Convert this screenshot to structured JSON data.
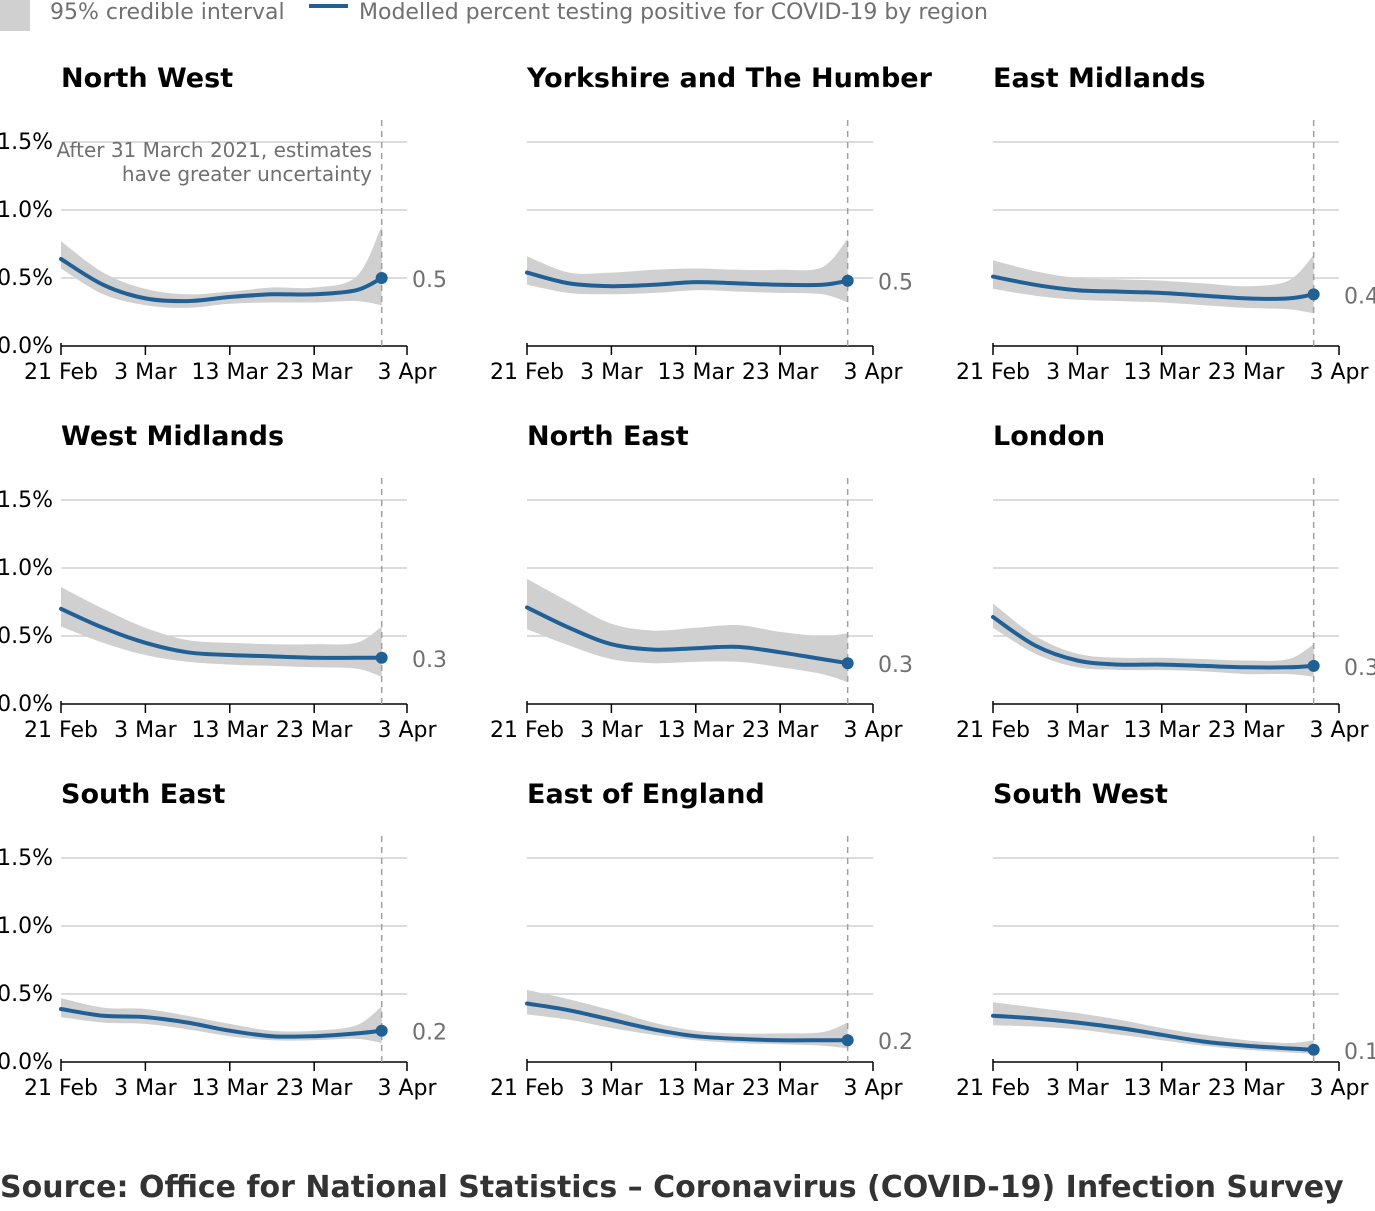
{
  "legend": {
    "band_label": "95% credible interval",
    "line_label": "Modelled percent testing positive for COVID-19 by region"
  },
  "annotation": {
    "line1": "After 31 March 2021, estimates",
    "line2": "have greater uncertainty"
  },
  "source": "Source: Office for National Statistics – Coronavirus (COVID-19) Infection Survey",
  "colors": {
    "line": "#206095",
    "band": "#d0d0d0",
    "grid": "#d0d0d0",
    "ref_line": "#a0a0a0",
    "label_grey": "#707070"
  },
  "chart_data": [
    {
      "type": "line",
      "title": "North West",
      "x": [
        0,
        5,
        10,
        15,
        20,
        25,
        30,
        35,
        38
      ],
      "x_ticks": [
        {
          "day": 0,
          "label": "21 Feb"
        },
        {
          "day": 10,
          "label": "3 Mar"
        },
        {
          "day": 20,
          "label": "13 Mar"
        },
        {
          "day": 30,
          "label": "23 Mar"
        },
        {
          "day": 41,
          "label": "3 Apr"
        }
      ],
      "y_ticks": [
        {
          "value": 0,
          "label": "0.0%"
        },
        {
          "value": 0.5,
          "label": "0.5%"
        },
        {
          "value": 1.0,
          "label": "1.0%"
        },
        {
          "value": 1.5,
          "label": "1.5%"
        }
      ],
      "ylim": [
        0,
        1.55
      ],
      "xlim": [
        0,
        41
      ],
      "reference_x": 38,
      "series": [
        {
          "values": [
            0.64,
            0.45,
            0.35,
            0.33,
            0.36,
            0.38,
            0.38,
            0.41,
            0.5
          ],
          "lower": [
            0.57,
            0.38,
            0.3,
            0.28,
            0.31,
            0.32,
            0.32,
            0.33,
            0.3
          ],
          "upper": [
            0.77,
            0.54,
            0.42,
            0.38,
            0.4,
            0.43,
            0.43,
            0.51,
            0.88
          ]
        }
      ],
      "end_label": "0.5"
    },
    {
      "type": "line",
      "title": "Yorkshire and The Humber",
      "x": [
        0,
        5,
        10,
        15,
        20,
        25,
        30,
        35,
        38
      ],
      "x_ticks": [
        {
          "day": 0,
          "label": "21 Feb"
        },
        {
          "day": 10,
          "label": "3 Mar"
        },
        {
          "day": 20,
          "label": "13 Mar"
        },
        {
          "day": 30,
          "label": "23 Mar"
        },
        {
          "day": 41,
          "label": "3 Apr"
        }
      ],
      "y_ticks": [
        {
          "value": 0,
          "label": ""
        },
        {
          "value": 0.5,
          "label": ""
        },
        {
          "value": 1.0,
          "label": ""
        },
        {
          "value": 1.5,
          "label": ""
        }
      ],
      "ylim": [
        0,
        1.55
      ],
      "xlim": [
        0,
        41
      ],
      "reference_x": 38,
      "series": [
        {
          "values": [
            0.54,
            0.46,
            0.44,
            0.45,
            0.47,
            0.46,
            0.45,
            0.45,
            0.48
          ],
          "lower": [
            0.45,
            0.39,
            0.38,
            0.39,
            0.41,
            0.4,
            0.39,
            0.38,
            0.32
          ],
          "upper": [
            0.66,
            0.54,
            0.54,
            0.56,
            0.57,
            0.56,
            0.56,
            0.58,
            0.79
          ]
        }
      ],
      "end_label": "0.5"
    },
    {
      "type": "line",
      "title": "East Midlands",
      "x": [
        0,
        5,
        10,
        15,
        20,
        25,
        30,
        35,
        38
      ],
      "x_ticks": [
        {
          "day": 0,
          "label": "21 Feb"
        },
        {
          "day": 10,
          "label": "3 Mar"
        },
        {
          "day": 20,
          "label": "13 Mar"
        },
        {
          "day": 30,
          "label": "23 Mar"
        },
        {
          "day": 41,
          "label": "3 Apr"
        }
      ],
      "y_ticks": [
        {
          "value": 0,
          "label": ""
        },
        {
          "value": 0.5,
          "label": ""
        },
        {
          "value": 1.0,
          "label": ""
        },
        {
          "value": 1.5,
          "label": ""
        }
      ],
      "ylim": [
        0,
        1.55
      ],
      "xlim": [
        0,
        41
      ],
      "reference_x": 38,
      "series": [
        {
          "values": [
            0.51,
            0.45,
            0.41,
            0.4,
            0.39,
            0.37,
            0.35,
            0.35,
            0.38
          ],
          "lower": [
            0.42,
            0.37,
            0.34,
            0.33,
            0.32,
            0.3,
            0.28,
            0.27,
            0.24
          ],
          "upper": [
            0.63,
            0.55,
            0.5,
            0.49,
            0.48,
            0.46,
            0.44,
            0.48,
            0.67
          ]
        }
      ],
      "end_label": "0.4"
    },
    {
      "type": "line",
      "title": "West Midlands",
      "x": [
        0,
        5,
        10,
        15,
        20,
        25,
        30,
        35,
        38
      ],
      "x_ticks": [
        {
          "day": 0,
          "label": "21 Feb"
        },
        {
          "day": 10,
          "label": "3 Mar"
        },
        {
          "day": 20,
          "label": "13 Mar"
        },
        {
          "day": 30,
          "label": "23 Mar"
        },
        {
          "day": 41,
          "label": "3 Apr"
        }
      ],
      "y_ticks": [
        {
          "value": 0,
          "label": "0.0%"
        },
        {
          "value": 0.5,
          "label": "0.5%"
        },
        {
          "value": 1.0,
          "label": "1.0%"
        },
        {
          "value": 1.5,
          "label": "1.5%"
        }
      ],
      "ylim": [
        0,
        1.55
      ],
      "xlim": [
        0,
        41
      ],
      "reference_x": 38,
      "series": [
        {
          "values": [
            0.7,
            0.56,
            0.45,
            0.38,
            0.36,
            0.35,
            0.34,
            0.34,
            0.34
          ],
          "lower": [
            0.57,
            0.45,
            0.36,
            0.31,
            0.29,
            0.28,
            0.27,
            0.26,
            0.2
          ],
          "upper": [
            0.86,
            0.7,
            0.56,
            0.47,
            0.45,
            0.44,
            0.44,
            0.45,
            0.57
          ]
        }
      ],
      "end_label": "0.3"
    },
    {
      "type": "line",
      "title": "North East",
      "x": [
        0,
        5,
        10,
        15,
        20,
        25,
        30,
        35,
        38
      ],
      "x_ticks": [
        {
          "day": 0,
          "label": "21 Feb"
        },
        {
          "day": 10,
          "label": "3 Mar"
        },
        {
          "day": 20,
          "label": "13 Mar"
        },
        {
          "day": 30,
          "label": "23 Mar"
        },
        {
          "day": 41,
          "label": "3 Apr"
        }
      ],
      "y_ticks": [
        {
          "value": 0,
          "label": ""
        },
        {
          "value": 0.5,
          "label": ""
        },
        {
          "value": 1.0,
          "label": ""
        },
        {
          "value": 1.5,
          "label": ""
        }
      ],
      "ylim": [
        0,
        1.55
      ],
      "xlim": [
        0,
        41
      ],
      "reference_x": 38,
      "series": [
        {
          "values": [
            0.71,
            0.56,
            0.44,
            0.4,
            0.41,
            0.42,
            0.38,
            0.33,
            0.3
          ],
          "lower": [
            0.55,
            0.43,
            0.33,
            0.3,
            0.31,
            0.31,
            0.27,
            0.22,
            0.16
          ],
          "upper": [
            0.92,
            0.75,
            0.59,
            0.54,
            0.56,
            0.58,
            0.53,
            0.5,
            0.52
          ]
        }
      ],
      "end_label": "0.3"
    },
    {
      "type": "line",
      "title": "London",
      "x": [
        0,
        5,
        10,
        15,
        20,
        25,
        30,
        35,
        38
      ],
      "x_ticks": [
        {
          "day": 0,
          "label": "21 Feb"
        },
        {
          "day": 10,
          "label": "3 Mar"
        },
        {
          "day": 20,
          "label": "13 Mar"
        },
        {
          "day": 30,
          "label": "23 Mar"
        },
        {
          "day": 41,
          "label": "3 Apr"
        }
      ],
      "y_ticks": [
        {
          "value": 0,
          "label": ""
        },
        {
          "value": 0.5,
          "label": ""
        },
        {
          "value": 1.0,
          "label": ""
        },
        {
          "value": 1.5,
          "label": ""
        }
      ],
      "ylim": [
        0,
        1.55
      ],
      "xlim": [
        0,
        41
      ],
      "reference_x": 38,
      "series": [
        {
          "values": [
            0.64,
            0.43,
            0.32,
            0.29,
            0.29,
            0.28,
            0.27,
            0.27,
            0.28
          ],
          "lower": [
            0.56,
            0.37,
            0.27,
            0.25,
            0.25,
            0.24,
            0.22,
            0.22,
            0.2
          ],
          "upper": [
            0.74,
            0.5,
            0.37,
            0.34,
            0.34,
            0.33,
            0.32,
            0.33,
            0.44
          ]
        }
      ],
      "end_label": "0.3"
    },
    {
      "type": "line",
      "title": "South East",
      "x": [
        0,
        5,
        10,
        15,
        20,
        25,
        30,
        35,
        38
      ],
      "x_ticks": [
        {
          "day": 0,
          "label": "21 Feb"
        },
        {
          "day": 10,
          "label": "3 Mar"
        },
        {
          "day": 20,
          "label": "13 Mar"
        },
        {
          "day": 30,
          "label": "23 Mar"
        },
        {
          "day": 41,
          "label": "3 Apr"
        }
      ],
      "y_ticks": [
        {
          "value": 0,
          "label": "0.0%"
        },
        {
          "value": 0.5,
          "label": "0.5%"
        },
        {
          "value": 1.0,
          "label": "1.0%"
        },
        {
          "value": 1.5,
          "label": "1.5%"
        }
      ],
      "ylim": [
        0,
        1.55
      ],
      "xlim": [
        0,
        41
      ],
      "reference_x": 38,
      "series": [
        {
          "values": [
            0.39,
            0.34,
            0.33,
            0.29,
            0.23,
            0.19,
            0.19,
            0.21,
            0.23
          ],
          "lower": [
            0.33,
            0.29,
            0.28,
            0.24,
            0.19,
            0.16,
            0.16,
            0.17,
            0.14
          ],
          "upper": [
            0.47,
            0.4,
            0.39,
            0.34,
            0.28,
            0.23,
            0.23,
            0.27,
            0.41
          ]
        }
      ],
      "end_label": "0.2"
    },
    {
      "type": "line",
      "title": "East of England",
      "x": [
        0,
        5,
        10,
        15,
        20,
        25,
        30,
        35,
        38
      ],
      "x_ticks": [
        {
          "day": 0,
          "label": "21 Feb"
        },
        {
          "day": 10,
          "label": "3 Mar"
        },
        {
          "day": 20,
          "label": "13 Mar"
        },
        {
          "day": 30,
          "label": "23 Mar"
        },
        {
          "day": 41,
          "label": "3 Apr"
        }
      ],
      "y_ticks": [
        {
          "value": 0,
          "label": ""
        },
        {
          "value": 0.5,
          "label": ""
        },
        {
          "value": 1.0,
          "label": ""
        },
        {
          "value": 1.5,
          "label": ""
        }
      ],
      "ylim": [
        0,
        1.55
      ],
      "xlim": [
        0,
        41
      ],
      "reference_x": 38,
      "series": [
        {
          "values": [
            0.43,
            0.38,
            0.31,
            0.24,
            0.19,
            0.17,
            0.16,
            0.16,
            0.16
          ],
          "lower": [
            0.35,
            0.31,
            0.25,
            0.2,
            0.16,
            0.14,
            0.13,
            0.12,
            0.1
          ],
          "upper": [
            0.53,
            0.46,
            0.38,
            0.29,
            0.23,
            0.21,
            0.21,
            0.22,
            0.29
          ]
        }
      ],
      "end_label": "0.2"
    },
    {
      "type": "line",
      "title": "South West",
      "x": [
        0,
        5,
        10,
        15,
        20,
        25,
        30,
        35,
        38
      ],
      "x_ticks": [
        {
          "day": 0,
          "label": "21 Feb"
        },
        {
          "day": 10,
          "label": "3 Mar"
        },
        {
          "day": 20,
          "label": "13 Mar"
        },
        {
          "day": 30,
          "label": "23 Mar"
        },
        {
          "day": 41,
          "label": "3 Apr"
        }
      ],
      "y_ticks": [
        {
          "value": 0,
          "label": ""
        },
        {
          "value": 0.5,
          "label": ""
        },
        {
          "value": 1.0,
          "label": ""
        },
        {
          "value": 1.5,
          "label": ""
        }
      ],
      "ylim": [
        0,
        1.55
      ],
      "xlim": [
        0,
        41
      ],
      "reference_x": 38,
      "series": [
        {
          "values": [
            0.34,
            0.32,
            0.29,
            0.25,
            0.2,
            0.15,
            0.12,
            0.1,
            0.09
          ],
          "lower": [
            0.27,
            0.26,
            0.24,
            0.2,
            0.16,
            0.12,
            0.09,
            0.07,
            0.06
          ],
          "upper": [
            0.44,
            0.4,
            0.36,
            0.31,
            0.25,
            0.2,
            0.16,
            0.14,
            0.16
          ]
        }
      ],
      "end_label": "0.1"
    }
  ]
}
